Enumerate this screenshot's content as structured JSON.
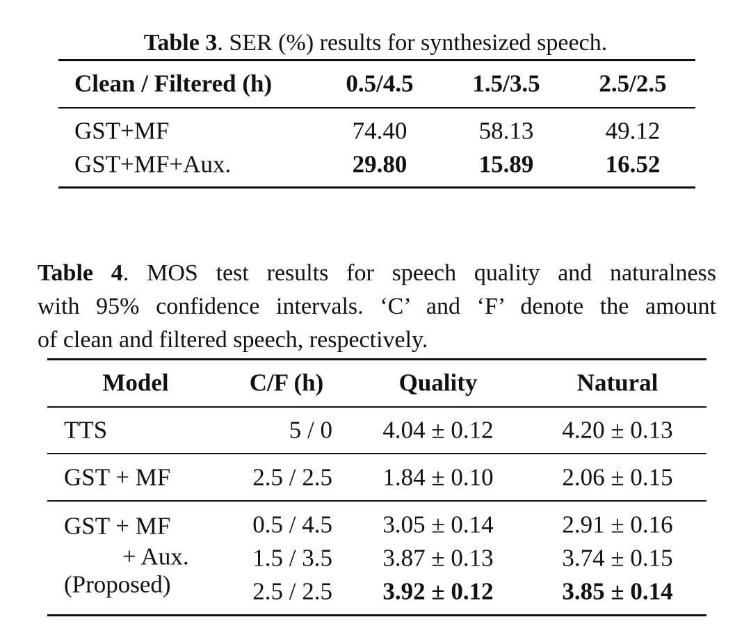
{
  "table3": {
    "caption_label": "Table 3",
    "caption": ". SER (%) results for synthesized speech.",
    "header": [
      "Clean / Filtered (h)",
      "0.5/4.5",
      "1.5/3.5",
      "2.5/2.5"
    ],
    "rows": [
      [
        "GST+MF",
        "74.40",
        "58.13",
        "49.12"
      ],
      [
        "GST+MF+Aux.",
        "29.80",
        "15.89",
        "16.52"
      ]
    ]
  },
  "table4": {
    "caption_label": "Table 4",
    "caption_lines": [
      ". MOS test results for speech quality and naturalness",
      "with 95% confidence intervals. ‘C’ and ‘F’ denote the amount",
      "of clean and filtered speech, respectively."
    ],
    "header": [
      "Model",
      "C/F (h)",
      "Quality",
      "Natural"
    ],
    "rows": [
      [
        "TTS",
        "5 / 0",
        "4.04 ± 0.12",
        "4.20 ± 0.13"
      ],
      [
        "GST + MF",
        "2.5 / 2.5",
        "1.84 ± 0.10",
        "2.06 ± 0.15"
      ],
      [
        "GST + MF",
        "0.5 / 4.5",
        "3.05 ± 0.14",
        "2.91 ± 0.16"
      ],
      [
        "+ Aux.",
        "1.5 / 3.5",
        "3.87 ± 0.13",
        "3.74 ± 0.15"
      ],
      [
        "(Proposed)",
        "2.5 / 2.5",
        "3.92 ± 0.12",
        "3.85 ± 0.14"
      ]
    ]
  }
}
